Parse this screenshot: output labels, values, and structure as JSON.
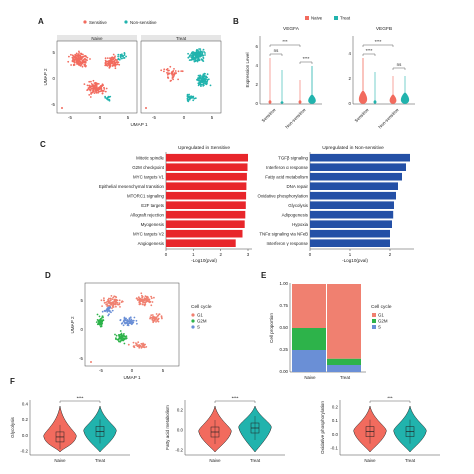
{
  "panel_letters": {
    "a": "A",
    "b": "B",
    "c": "C",
    "d": "D",
    "e": "E",
    "f": "F"
  },
  "colors": {
    "sensitive": "#f26b5e",
    "nonsensitive": "#21b3ad",
    "red_bar": "#e8262b",
    "blue_bar": "#2450a6",
    "g1": "#f08070",
    "g2m": "#2db34a",
    "s": "#6a8fd6"
  },
  "chart_data": [
    {
      "id": "A",
      "type": "scatter",
      "legend": [
        "Sensitive",
        "Non-sensitive"
      ],
      "facets": [
        "Naive",
        "Treat"
      ],
      "xlabel": "UMAP 1",
      "ylabel": "UMAP 2",
      "xticks": [
        "-5",
        "0",
        "5"
      ],
      "yticks": [
        "-5",
        "0",
        "5"
      ]
    },
    {
      "id": "B",
      "type": "violin",
      "legend": [
        "Naive",
        "Treat"
      ],
      "ylabel": "Expression Level",
      "facets": [
        {
          "title": "VEGFA",
          "categories": [
            "Sensitive",
            "Non-sensitive"
          ],
          "brackets": [
            "ns",
            "***",
            "****"
          ],
          "yticks": [
            "0",
            "2",
            "4",
            "6"
          ]
        },
        {
          "title": "VEGFB",
          "categories": [
            "Sensitive",
            "Non-sensitive"
          ],
          "brackets": [
            "****",
            "****",
            "ns"
          ],
          "yticks": [
            "0",
            "2",
            "4"
          ]
        }
      ]
    },
    {
      "id": "C1",
      "type": "bar",
      "orientation": "horizontal",
      "title": "Upregulated in Sensitive",
      "categories": [
        "Mitotic spindle",
        "G2M checkpoint",
        "MYC targets V1",
        "Epithelial mesenchymal transition",
        "MTORC1 signaling",
        "E2F targets",
        "Allograft rejection",
        "Myogenesis",
        "MYC targets V2",
        "Angiogenesis"
      ],
      "values": [
        3.0,
        2.98,
        2.96,
        2.94,
        2.93,
        2.92,
        2.9,
        2.88,
        2.8,
        2.55
      ],
      "xlabel": "-Log10(pval)",
      "xlim": [
        0,
        3
      ],
      "xticks": [
        "0",
        "1",
        "2",
        "3"
      ]
    },
    {
      "id": "C2",
      "type": "bar",
      "orientation": "horizontal",
      "title": "Upregulated in Non-sensitive",
      "categories": [
        "TGFβ signaling",
        "Interferon α response",
        "Fatty acid metabolism",
        "DNA repair",
        "Oxidative phosphorylation",
        "Glycolysis",
        "Adipogenesis",
        "Hypoxia",
        "TNFα signaling via NFκB",
        "Interferon γ response"
      ],
      "values": [
        2.5,
        2.4,
        2.3,
        2.2,
        2.15,
        2.1,
        2.08,
        2.05,
        2.0,
        2.0
      ],
      "xlabel": "-Log10(pval)",
      "xlim": [
        0,
        2.6
      ],
      "xticks": [
        "0",
        "1",
        "2"
      ]
    },
    {
      "id": "D",
      "type": "scatter",
      "legend_title": "Cell cycle",
      "legend": [
        "G1",
        "G2M",
        "S"
      ],
      "xlabel": "UMAP 1",
      "ylabel": "UMAP 2",
      "xticks": [
        "-5",
        "0",
        "5"
      ],
      "yticks": [
        "-5",
        "0",
        "5"
      ]
    },
    {
      "id": "E",
      "type": "bar",
      "stacked": true,
      "categories": [
        "Naive",
        "Treat"
      ],
      "series": [
        {
          "name": "G1",
          "values": [
            0.5,
            0.85
          ]
        },
        {
          "name": "G2M",
          "values": [
            0.25,
            0.07
          ]
        },
        {
          "name": "S",
          "values": [
            0.25,
            0.08
          ]
        }
      ],
      "legend_title": "Cell cycle",
      "ylabel": "Cell proportion",
      "ylim": [
        0,
        1
      ],
      "yticks": [
        "0.00",
        "0.25",
        "0.50",
        "0.75",
        "1.00"
      ]
    },
    {
      "id": "F",
      "type": "violin",
      "facets": [
        {
          "ylabel": "Glycolysis",
          "categories": [
            "Naive",
            "Treat"
          ],
          "sig": "****",
          "yticks": [
            "-0.2",
            "0.0",
            "0.2",
            "0.4"
          ],
          "ylim": [
            -0.25,
            0.45
          ],
          "median": [
            -0.02,
            0.05
          ]
        },
        {
          "ylabel": "Fatty acid metabolism",
          "categories": [
            "Naive",
            "Treat"
          ],
          "sig": "****",
          "yticks": [
            "-0.2",
            "0.0",
            "0.2"
          ],
          "ylim": [
            -0.25,
            0.3
          ],
          "median": [
            -0.02,
            0.02
          ]
        },
        {
          "ylabel": "Oxidative phosphorylation",
          "categories": [
            "Naive",
            "Treat"
          ],
          "sig": "***",
          "yticks": [
            "-0.1",
            "0.0",
            "0.1",
            "0.2"
          ],
          "ylim": [
            -0.15,
            0.25
          ],
          "median": [
            0.02,
            0.02
          ]
        }
      ]
    }
  ]
}
